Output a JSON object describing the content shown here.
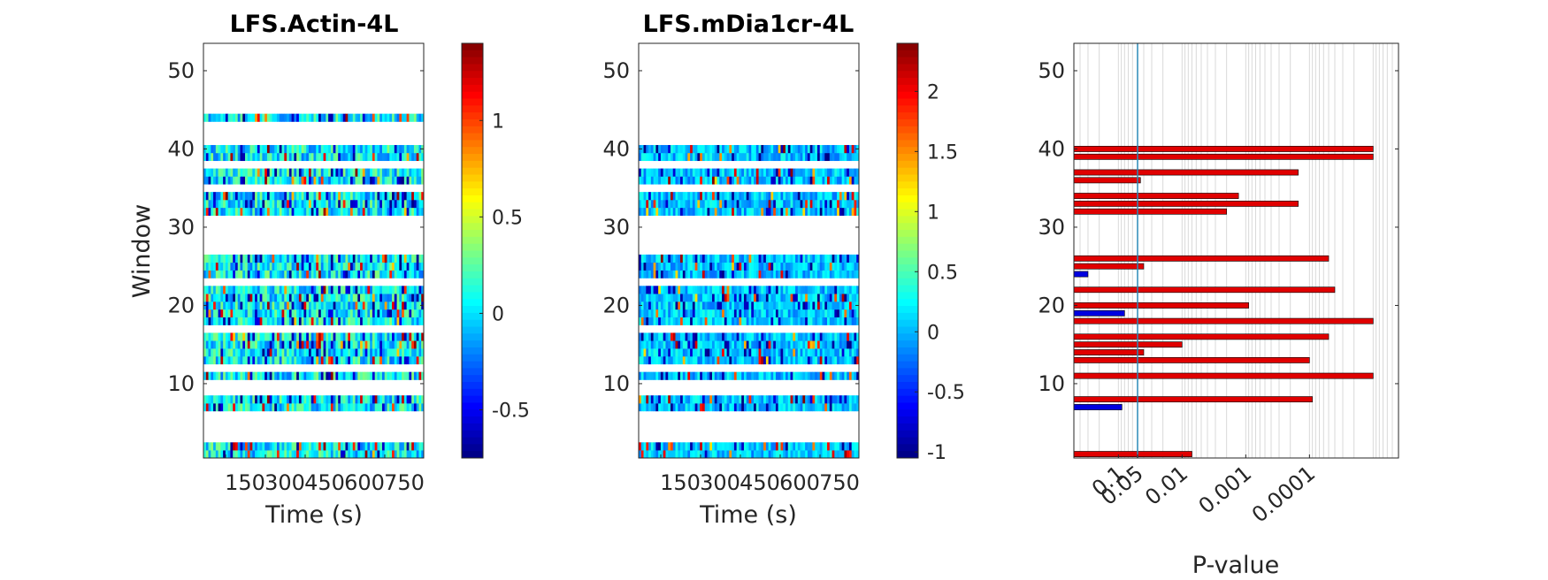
{
  "chart_data": [
    {
      "type": "heatmap",
      "title": "LFS.Actin-4L",
      "xlabel": "Time (s)",
      "ylabel": "Window",
      "xtick_labels": [
        "150",
        "300",
        "450",
        "600",
        "750"
      ],
      "ytick_labels": [
        "10",
        "20",
        "30",
        "40",
        "50"
      ],
      "ylim": [
        0.5,
        53.5
      ],
      "colormap": "jet",
      "colorbar": {
        "range": [
          -0.75,
          1.4
        ],
        "ticks": [
          "-0.5",
          "0",
          "0.5",
          "1"
        ],
        "tick_values": [
          -0.5,
          0,
          0.5,
          1
        ]
      },
      "windows_with_data": [
        1,
        2,
        7,
        8,
        11,
        13,
        14,
        15,
        16,
        18,
        19,
        20,
        21,
        22,
        24,
        25,
        26,
        32,
        33,
        34,
        36,
        37,
        39,
        40,
        44
      ]
    },
    {
      "type": "heatmap",
      "title": "LFS.mDia1cr-4L",
      "xlabel": "Time (s)",
      "ylabel": "",
      "xtick_labels": [
        "150",
        "300",
        "450",
        "600",
        "750"
      ],
      "ytick_labels": [
        "10",
        "20",
        "30",
        "40",
        "50"
      ],
      "ylim": [
        0.5,
        53.5
      ],
      "colormap": "jet",
      "colorbar": {
        "range": [
          -1.05,
          2.4
        ],
        "ticks": [
          "-1",
          "-0.5",
          "0",
          "0.5",
          "1",
          "1.5",
          "2"
        ],
        "tick_values": [
          -1,
          -0.5,
          0,
          0.5,
          1,
          1.5,
          2
        ]
      },
      "windows_with_data": [
        1,
        2,
        7,
        8,
        11,
        13,
        14,
        15,
        16,
        18,
        19,
        20,
        21,
        22,
        24,
        25,
        26,
        32,
        33,
        34,
        36,
        37,
        39,
        40
      ]
    },
    {
      "type": "bar",
      "orientation": "horizontal",
      "xlabel": "P-value",
      "ylabel": "",
      "xscale": "log-p",
      "xtick_labels": [
        "0.1",
        "0.05",
        "0.01",
        "0.001",
        "0.0001"
      ],
      "xtick_values": [
        0.1,
        0.05,
        0.01,
        0.001,
        0.0001
      ],
      "ytick_labels": [
        "10",
        "20",
        "30",
        "40",
        "50"
      ],
      "ylim": [
        0.5,
        53.5
      ],
      "threshold_p": 0.05,
      "grid": true,
      "bars": [
        {
          "window": 1,
          "p": 0.007,
          "color": "#e00000"
        },
        {
          "window": 7,
          "p": 0.088,
          "color": "#0000e0"
        },
        {
          "window": 8,
          "p": 9e-05,
          "color": "#e00000"
        },
        {
          "window": 11,
          "p": 1e-05,
          "color": "#e00000"
        },
        {
          "window": 13,
          "p": 0.0001,
          "color": "#e00000"
        },
        {
          "window": 14,
          "p": 0.04,
          "color": "#e00000"
        },
        {
          "window": 15,
          "p": 0.01,
          "color": "#e00000"
        },
        {
          "window": 16,
          "p": 5e-05,
          "color": "#e00000"
        },
        {
          "window": 18,
          "p": 1e-05,
          "color": "#e00000"
        },
        {
          "window": 19,
          "p": 0.08,
          "color": "#0000e0"
        },
        {
          "window": 20,
          "p": 0.0009,
          "color": "#e00000"
        },
        {
          "window": 22,
          "p": 4e-05,
          "color": "#e00000"
        },
        {
          "window": 24,
          "p": 0.3,
          "color": "#0000e0"
        },
        {
          "window": 25,
          "p": 0.04,
          "color": "#e00000"
        },
        {
          "window": 26,
          "p": 5e-05,
          "color": "#e00000"
        },
        {
          "window": 32,
          "p": 0.002,
          "color": "#e00000"
        },
        {
          "window": 33,
          "p": 0.00015,
          "color": "#e00000"
        },
        {
          "window": 34,
          "p": 0.0013,
          "color": "#e00000"
        },
        {
          "window": 36,
          "p": 0.045,
          "color": "#e00000"
        },
        {
          "window": 37,
          "p": 0.00015,
          "color": "#e00000"
        },
        {
          "window": 39,
          "p": 1e-05,
          "color": "#e00000"
        },
        {
          "window": 40,
          "p": 1e-05,
          "color": "#e00000"
        }
      ]
    }
  ]
}
